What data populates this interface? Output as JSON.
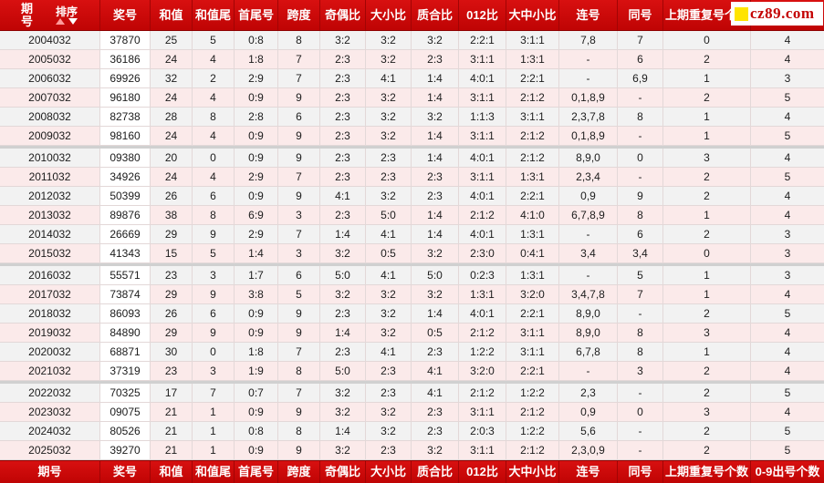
{
  "site": {
    "watermark_text": "cz89.com",
    "watermark_square_color": "#ffe400",
    "watermark_text_color": "#c40404"
  },
  "table": {
    "sort_label": "排序",
    "headers": [
      "期号",
      "奖号",
      "和值",
      "和值尾",
      "首尾号",
      "跨度",
      "奇偶比",
      "大小比",
      "质合比",
      "012比",
      "大中小比",
      "连号",
      "同号",
      "上期重复号个数",
      "0-9出号个数"
    ],
    "group_size": 6,
    "colors": {
      "header_bg": "#c90808",
      "header_divider": "#a20404",
      "row_gray": "#f2f2f2",
      "row_pink": "#fbeaea",
      "prize_col_bg": "#ffffff",
      "group_separator": "#d0d0d0",
      "grid_line": "#e3d8d8"
    },
    "rows": [
      [
        "2004032",
        "37870",
        "25",
        "5",
        "0:8",
        "8",
        "3:2",
        "3:2",
        "3:2",
        "2:2:1",
        "3:1:1",
        "7,8",
        "7",
        "0",
        "4"
      ],
      [
        "2005032",
        "36186",
        "24",
        "4",
        "1:8",
        "7",
        "2:3",
        "3:2",
        "2:3",
        "3:1:1",
        "1:3:1",
        "-",
        "6",
        "2",
        "4"
      ],
      [
        "2006032",
        "69926",
        "32",
        "2",
        "2:9",
        "7",
        "2:3",
        "4:1",
        "1:4",
        "4:0:1",
        "2:2:1",
        "-",
        "6,9",
        "1",
        "3"
      ],
      [
        "2007032",
        "96180",
        "24",
        "4",
        "0:9",
        "9",
        "2:3",
        "3:2",
        "1:4",
        "3:1:1",
        "2:1:2",
        "0,1,8,9",
        "-",
        "2",
        "5"
      ],
      [
        "2008032",
        "82738",
        "28",
        "8",
        "2:8",
        "6",
        "2:3",
        "3:2",
        "3:2",
        "1:1:3",
        "3:1:1",
        "2,3,7,8",
        "8",
        "1",
        "4"
      ],
      [
        "2009032",
        "98160",
        "24",
        "4",
        "0:9",
        "9",
        "2:3",
        "3:2",
        "1:4",
        "3:1:1",
        "2:1:2",
        "0,1,8,9",
        "-",
        "1",
        "5"
      ],
      [
        "2010032",
        "09380",
        "20",
        "0",
        "0:9",
        "9",
        "2:3",
        "2:3",
        "1:4",
        "4:0:1",
        "2:1:2",
        "8,9,0",
        "0",
        "3",
        "4"
      ],
      [
        "2011032",
        "34926",
        "24",
        "4",
        "2:9",
        "7",
        "2:3",
        "2:3",
        "2:3",
        "3:1:1",
        "1:3:1",
        "2,3,4",
        "-",
        "2",
        "5"
      ],
      [
        "2012032",
        "50399",
        "26",
        "6",
        "0:9",
        "9",
        "4:1",
        "3:2",
        "2:3",
        "4:0:1",
        "2:2:1",
        "0,9",
        "9",
        "2",
        "4"
      ],
      [
        "2013032",
        "89876",
        "38",
        "8",
        "6:9",
        "3",
        "2:3",
        "5:0",
        "1:4",
        "2:1:2",
        "4:1:0",
        "6,7,8,9",
        "8",
        "1",
        "4"
      ],
      [
        "2014032",
        "26669",
        "29",
        "9",
        "2:9",
        "7",
        "1:4",
        "4:1",
        "1:4",
        "4:0:1",
        "1:3:1",
        "-",
        "6",
        "2",
        "3"
      ],
      [
        "2015032",
        "41343",
        "15",
        "5",
        "1:4",
        "3",
        "3:2",
        "0:5",
        "3:2",
        "2:3:0",
        "0:4:1",
        "3,4",
        "3,4",
        "0",
        "3"
      ],
      [
        "2016032",
        "55571",
        "23",
        "3",
        "1:7",
        "6",
        "5:0",
        "4:1",
        "5:0",
        "0:2:3",
        "1:3:1",
        "-",
        "5",
        "1",
        "3"
      ],
      [
        "2017032",
        "73874",
        "29",
        "9",
        "3:8",
        "5",
        "3:2",
        "3:2",
        "3:2",
        "1:3:1",
        "3:2:0",
        "3,4,7,8",
        "7",
        "1",
        "4"
      ],
      [
        "2018032",
        "86093",
        "26",
        "6",
        "0:9",
        "9",
        "2:3",
        "3:2",
        "1:4",
        "4:0:1",
        "2:2:1",
        "8,9,0",
        "-",
        "2",
        "5"
      ],
      [
        "2019032",
        "84890",
        "29",
        "9",
        "0:9",
        "9",
        "1:4",
        "3:2",
        "0:5",
        "2:1:2",
        "3:1:1",
        "8,9,0",
        "8",
        "3",
        "4"
      ],
      [
        "2020032",
        "68871",
        "30",
        "0",
        "1:8",
        "7",
        "2:3",
        "4:1",
        "2:3",
        "1:2:2",
        "3:1:1",
        "6,7,8",
        "8",
        "1",
        "4"
      ],
      [
        "2021032",
        "37319",
        "23",
        "3",
        "1:9",
        "8",
        "5:0",
        "2:3",
        "4:1",
        "3:2:0",
        "2:2:1",
        "-",
        "3",
        "2",
        "4"
      ],
      [
        "2022032",
        "70325",
        "17",
        "7",
        "0:7",
        "7",
        "3:2",
        "2:3",
        "4:1",
        "2:1:2",
        "1:2:2",
        "2,3",
        "-",
        "2",
        "5"
      ],
      [
        "2023032",
        "09075",
        "21",
        "1",
        "0:9",
        "9",
        "3:2",
        "3:2",
        "2:3",
        "3:1:1",
        "2:1:2",
        "0,9",
        "0",
        "3",
        "4"
      ],
      [
        "2024032",
        "80526",
        "21",
        "1",
        "0:8",
        "8",
        "1:4",
        "3:2",
        "2:3",
        "2:0:3",
        "1:2:2",
        "5,6",
        "-",
        "2",
        "5"
      ],
      [
        "2025032",
        "39270",
        "21",
        "1",
        "0:9",
        "9",
        "3:2",
        "2:3",
        "3:2",
        "3:1:1",
        "2:1:2",
        "2,3,0,9",
        "-",
        "2",
        "5"
      ]
    ]
  }
}
